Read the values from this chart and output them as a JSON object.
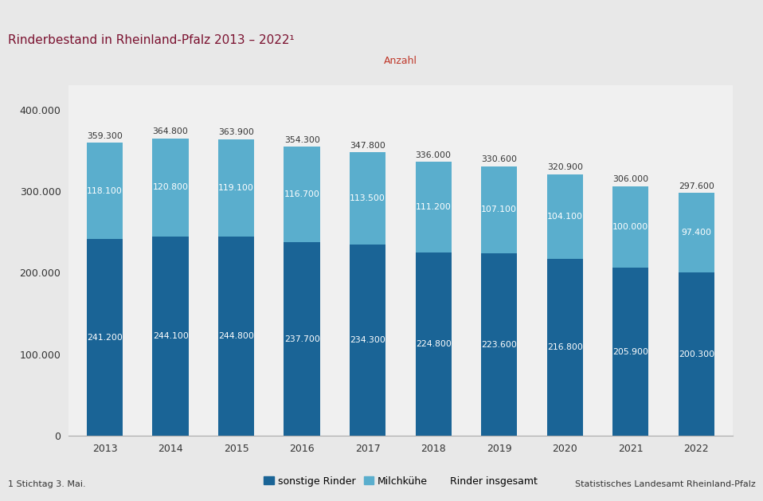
{
  "title": "Rinderbestand in Rheinland-Pfalz 2013 – 2022¹",
  "ylabel_label": "Anzahl",
  "years": [
    2013,
    2014,
    2015,
    2016,
    2017,
    2018,
    2019,
    2020,
    2021,
    2022
  ],
  "sonstige_rinder": [
    241200,
    244100,
    244800,
    237700,
    234300,
    224800,
    223600,
    216800,
    205900,
    200300
  ],
  "milchkuehe": [
    118100,
    120800,
    119100,
    116700,
    113500,
    111200,
    107100,
    104100,
    100000,
    97400
  ],
  "rinder_insgesamt": [
    359300,
    364800,
    363900,
    354300,
    347800,
    336000,
    330600,
    320900,
    306000,
    297600
  ],
  "color_sonstige": "#1a6496",
  "color_milchkuehe": "#5aaecd",
  "ylim": [
    0,
    430000
  ],
  "yticks": [
    0,
    100000,
    200000,
    300000,
    400000
  ],
  "ytick_labels": [
    "0",
    "100.000",
    "200.000",
    "300.000",
    "400.000"
  ],
  "footnote": "1 Stichtag 3. Mai.",
  "source": "Statistisches Landesamt Rheinland-Pfalz",
  "outer_bg_color": "#e8e8e8",
  "plot_bg_color": "#f0f0f0",
  "top_bar_color": "#7b1230",
  "title_color": "#7b1230",
  "anzahl_color": "#c0392b",
  "label_color_dark": "#333333",
  "legend_labels": [
    "sonstige Rinder",
    "Milchkühe",
    "Rinder insgesamt"
  ],
  "bar_width": 0.55
}
